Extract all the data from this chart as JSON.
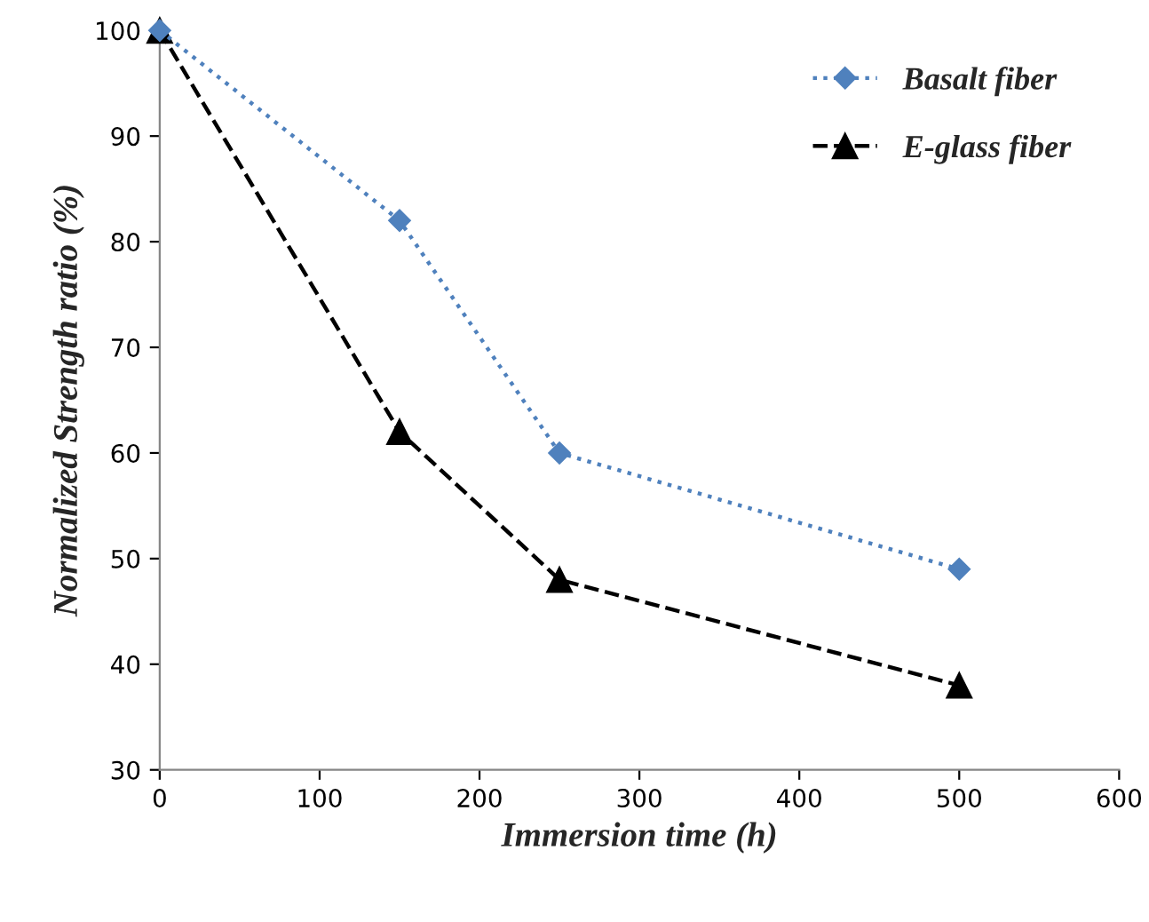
{
  "chart_data": {
    "type": "line",
    "xlabel": "Immersion time (h)",
    "ylabel": "Normalized Strength ratio (%)",
    "x": [
      0,
      150,
      250,
      500
    ],
    "series": [
      {
        "name": "Basalt fiber",
        "color": "#4f81bd",
        "values": [
          100,
          82,
          60,
          49
        ],
        "marker": "diamond",
        "line_style": "dotted"
      },
      {
        "name": "E-glass fiber",
        "color": "#000000",
        "values": [
          100,
          62,
          48,
          38
        ],
        "marker": "triangle",
        "line_style": "dashed"
      }
    ],
    "xlim": [
      0,
      600
    ],
    "xticks": [
      0,
      100,
      200,
      300,
      400,
      500,
      600
    ],
    "ylim": [
      30,
      100
    ],
    "yticks": [
      30,
      40,
      50,
      60,
      70,
      80,
      90,
      100
    ],
    "grid": false,
    "legend": "top right"
  }
}
